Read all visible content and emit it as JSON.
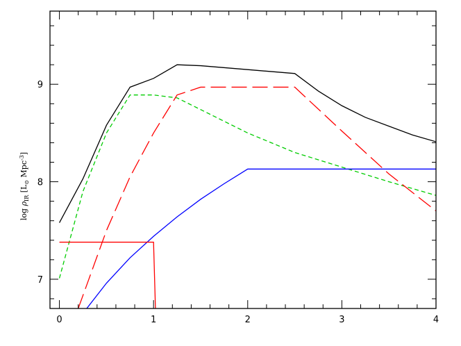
{
  "chart_data": {
    "type": "line",
    "title": "",
    "xlabel": "",
    "ylabel": "log ρ_IR [L⊙ Mpc⁻³]",
    "ylabel_parts": {
      "prefix": "log ",
      "rho": "ρ",
      "sub": "IR",
      "open": " [L",
      "sun": "⊙",
      "mid": " Mpc",
      "sup": "-3",
      "close": "]"
    },
    "xlim": [
      -0.1,
      4
    ],
    "ylim": [
      6.7,
      9.75
    ],
    "xticks": [
      {
        "value": 0,
        "label": "0"
      },
      {
        "value": 1,
        "label": "1"
      },
      {
        "value": 2,
        "label": "2"
      },
      {
        "value": 3,
        "label": "3"
      },
      {
        "value": 4,
        "label": "4"
      }
    ],
    "yticks": [
      {
        "value": 7,
        "label": "7"
      },
      {
        "value": 8,
        "label": "8"
      },
      {
        "value": 9,
        "label": "9"
      }
    ],
    "x_minor_step": 0.2,
    "y_minor_step": 0.2,
    "grid": false,
    "series": [
      {
        "color": "#000000",
        "dash": "",
        "points": [
          [
            0,
            7.58
          ],
          [
            0.25,
            8.03
          ],
          [
            0.5,
            8.58
          ],
          [
            0.75,
            8.97
          ],
          [
            1.0,
            9.06
          ],
          [
            1.25,
            9.2
          ],
          [
            1.5,
            9.19
          ],
          [
            2.0,
            9.15
          ],
          [
            2.5,
            9.11
          ],
          [
            2.75,
            8.93
          ],
          [
            3.0,
            8.78
          ],
          [
            3.25,
            8.66
          ],
          [
            3.5,
            8.57
          ],
          [
            3.75,
            8.48
          ],
          [
            4.0,
            8.41
          ]
        ]
      },
      {
        "color": "#00cc00",
        "dash": "6,4",
        "points": [
          [
            0,
            7.01
          ],
          [
            0.25,
            7.9
          ],
          [
            0.5,
            8.5
          ],
          [
            0.75,
            8.89
          ],
          [
            1.0,
            8.89
          ],
          [
            1.25,
            8.86
          ],
          [
            1.5,
            8.74
          ],
          [
            2.0,
            8.5
          ],
          [
            2.5,
            8.3
          ],
          [
            3.0,
            8.15
          ],
          [
            3.5,
            8.0
          ],
          [
            4.0,
            7.86
          ]
        ]
      },
      {
        "color": "#ff0000",
        "dash": "22,8",
        "points": [
          [
            0.2,
            6.7
          ],
          [
            0.5,
            7.5
          ],
          [
            0.75,
            8.05
          ],
          [
            1.0,
            8.5
          ],
          [
            1.25,
            8.89
          ],
          [
            1.5,
            8.97
          ],
          [
            2.5,
            8.97
          ],
          [
            3.0,
            8.52
          ],
          [
            3.5,
            8.08
          ],
          [
            4.0,
            7.7
          ]
        ]
      },
      {
        "color": "#0000ff",
        "dash": "",
        "points": [
          [
            0.29,
            6.7
          ],
          [
            0.5,
            6.96
          ],
          [
            0.75,
            7.22
          ],
          [
            1.0,
            7.44
          ],
          [
            1.25,
            7.64
          ],
          [
            1.5,
            7.82
          ],
          [
            1.75,
            7.98
          ],
          [
            2.0,
            8.13
          ],
          [
            4.0,
            8.13
          ]
        ]
      },
      {
        "color": "#ff0000",
        "dash": "",
        "points": [
          [
            0,
            7.38
          ],
          [
            1.0,
            7.38
          ],
          [
            1.02,
            6.7
          ]
        ]
      }
    ]
  }
}
